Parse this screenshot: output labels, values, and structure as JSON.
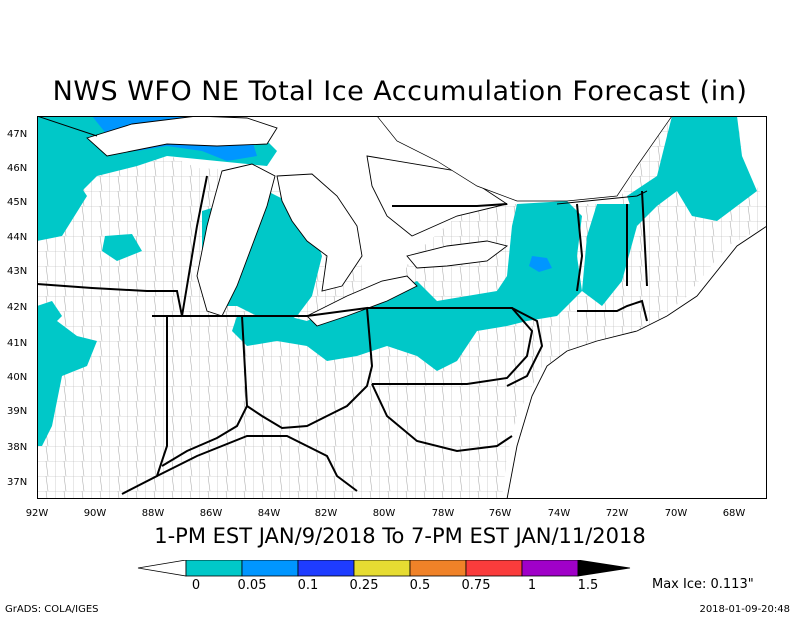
{
  "title": "NWS WFO NE Total Ice Accumulation Forecast (in)",
  "subtitle": "1-PM EST JAN/9/2018 To 7-PM EST JAN/11/2018",
  "lat_labels": [
    "47N",
    "46N",
    "45N",
    "44N",
    "43N",
    "42N",
    "41N",
    "40N",
    "39N",
    "38N",
    "37N"
  ],
  "lon_labels": [
    "92W",
    "90W",
    "88W",
    "86W",
    "84W",
    "82W",
    "80W",
    "78W",
    "76W",
    "74W",
    "72W",
    "70W",
    "68W"
  ],
  "colorbar": {
    "labels": [
      "0",
      "0.05",
      "0.1",
      "0.25",
      "0.5",
      "0.75",
      "1",
      "1.5"
    ],
    "colors": [
      "#ffffff",
      "#00c8c8",
      "#0096ff",
      "#1e3cff",
      "#e6dc32",
      "#f08228",
      "#fa3c3c",
      "#a000c8",
      "#000000"
    ]
  },
  "max_ice": "Max Ice: 0.113\"",
  "credit_left": "GrADS: COLA/IGES",
  "credit_right": "2018-01-09-20:48",
  "colors": {
    "ice_light": "#00c8c8",
    "ice_medium": "#0096ff",
    "water": "#ffffff",
    "border": "#000000",
    "county": "#a0a0a0"
  }
}
